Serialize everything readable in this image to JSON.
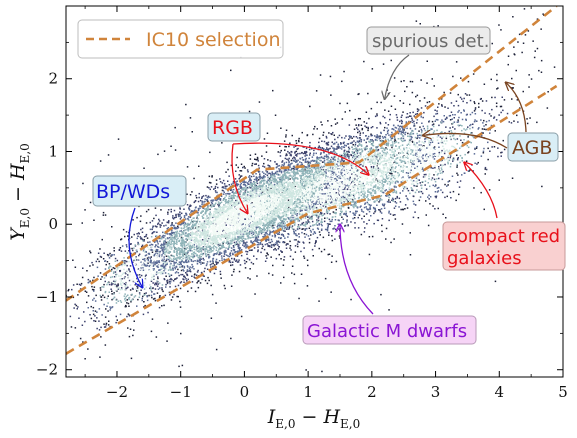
{
  "chart_data": {
    "type": "scatter",
    "title": "",
    "xlabel": "I_E,0 − H_E,0",
    "ylabel": "Y_E,0 − H_E,0",
    "xlabel_main": "I",
    "xlabel_mid": " − H",
    "xlabel_sub": "E,0",
    "ylabel_main": "Y",
    "ylabel_mid": " − H",
    "ylabel_sub": "E,0",
    "xlim": [
      -2.8,
      5.0
    ],
    "ylim": [
      -2.1,
      3.0
    ],
    "grid": false,
    "legend_position": "top-left",
    "x_ticks": [
      -2,
      -1,
      0,
      1,
      2,
      3,
      4,
      5
    ],
    "x_tick_labels": [
      "−2",
      "−1",
      "0",
      "1",
      "2",
      "3",
      "4",
      "5"
    ],
    "y_ticks": [
      -2,
      -1,
      0,
      1,
      2
    ],
    "y_tick_labels": [
      "−2",
      "−1",
      "0",
      "1",
      "2"
    ],
    "density_points": {
      "description_only": false,
      "clusters": [
        {
          "x": 0.0,
          "y": 0.15,
          "sx": 0.9,
          "sy": 0.45,
          "rho": 0.8,
          "weight": 0.55
        },
        {
          "x": 1.4,
          "y": 0.55,
          "sx": 0.9,
          "sy": 0.45,
          "rho": 0.7,
          "weight": 0.3
        },
        {
          "x": 2.6,
          "y": 0.85,
          "sx": 0.7,
          "sy": 0.4,
          "rho": 0.6,
          "weight": 0.1
        },
        {
          "x": -1.6,
          "y": -0.6,
          "sx": 0.5,
          "sy": 0.35,
          "rho": 0.6,
          "weight": 0.05
        }
      ],
      "colors": [
        "#1e2238",
        "#3a3f6b",
        "#586994",
        "#8fb3b8",
        "#cfe7e1",
        "#f2fbf6"
      ]
    },
    "series": [
      {
        "name": "IC10 selection",
        "color": "#d0843b",
        "style": "dashed",
        "segments": [
          {
            "x": [
              -2.8,
              0.2,
              1.8,
              4.9
            ],
            "y": [
              -1.05,
              0.75,
              0.85,
              3.0
            ]
          },
          {
            "x": [
              -2.8,
              1.0,
              2.2,
              4.9
            ],
            "y": [
              -1.78,
              0.15,
              0.4,
              1.9
            ]
          }
        ]
      }
    ],
    "annotations": [
      {
        "key": "spurious",
        "text": "spurious det.",
        "color": "#6b6b6b",
        "bg": "#ececec",
        "border": "#9a9a9a",
        "label_at": [
          1.95,
          2.56
        ],
        "arrow_to": [
          2.2,
          1.72
        ]
      },
      {
        "key": "rgb",
        "text": "RGB",
        "color": "#e8101a",
        "bg": "#d9eef6",
        "border": "#8a9fa8",
        "label_at": [
          -0.55,
          1.38
        ],
        "arrows_to": [
          [
            0.05,
            0.15
          ],
          [
            1.95,
            0.68
          ]
        ]
      },
      {
        "key": "agb",
        "text": "AGB",
        "color": "#7a4420",
        "bg": "#d9eef6",
        "border": "#8a9fa8",
        "label_at": [
          4.1,
          1.07
        ],
        "arrows_to": [
          [
            4.1,
            1.95
          ],
          [
            2.8,
            1.22
          ]
        ]
      },
      {
        "key": "bpwd",
        "text": "BP/WDs",
        "color": "#1218d8",
        "bg": "#d9eef6",
        "border": "#8a9fa8",
        "label_at": [
          -2.45,
          0.48
        ],
        "arrow_to": [
          -1.6,
          -0.87
        ]
      },
      {
        "key": "compactred",
        "text_lines": [
          "compact red",
          "galaxies"
        ],
        "color": "#e8101a",
        "bg": "#f9d0d0",
        "border": "#c79a9a",
        "label_at": [
          3.15,
          -0.05
        ],
        "arrow_to": [
          3.45,
          0.85
        ]
      },
      {
        "key": "galacticm",
        "text": "Galactic M dwarfs",
        "color": "#8a14d4",
        "bg": "#f6d4f6",
        "border": "#b89ab8",
        "label_at": [
          1.0,
          -1.42
        ],
        "arrow_to": [
          1.5,
          0.0
        ]
      }
    ]
  }
}
